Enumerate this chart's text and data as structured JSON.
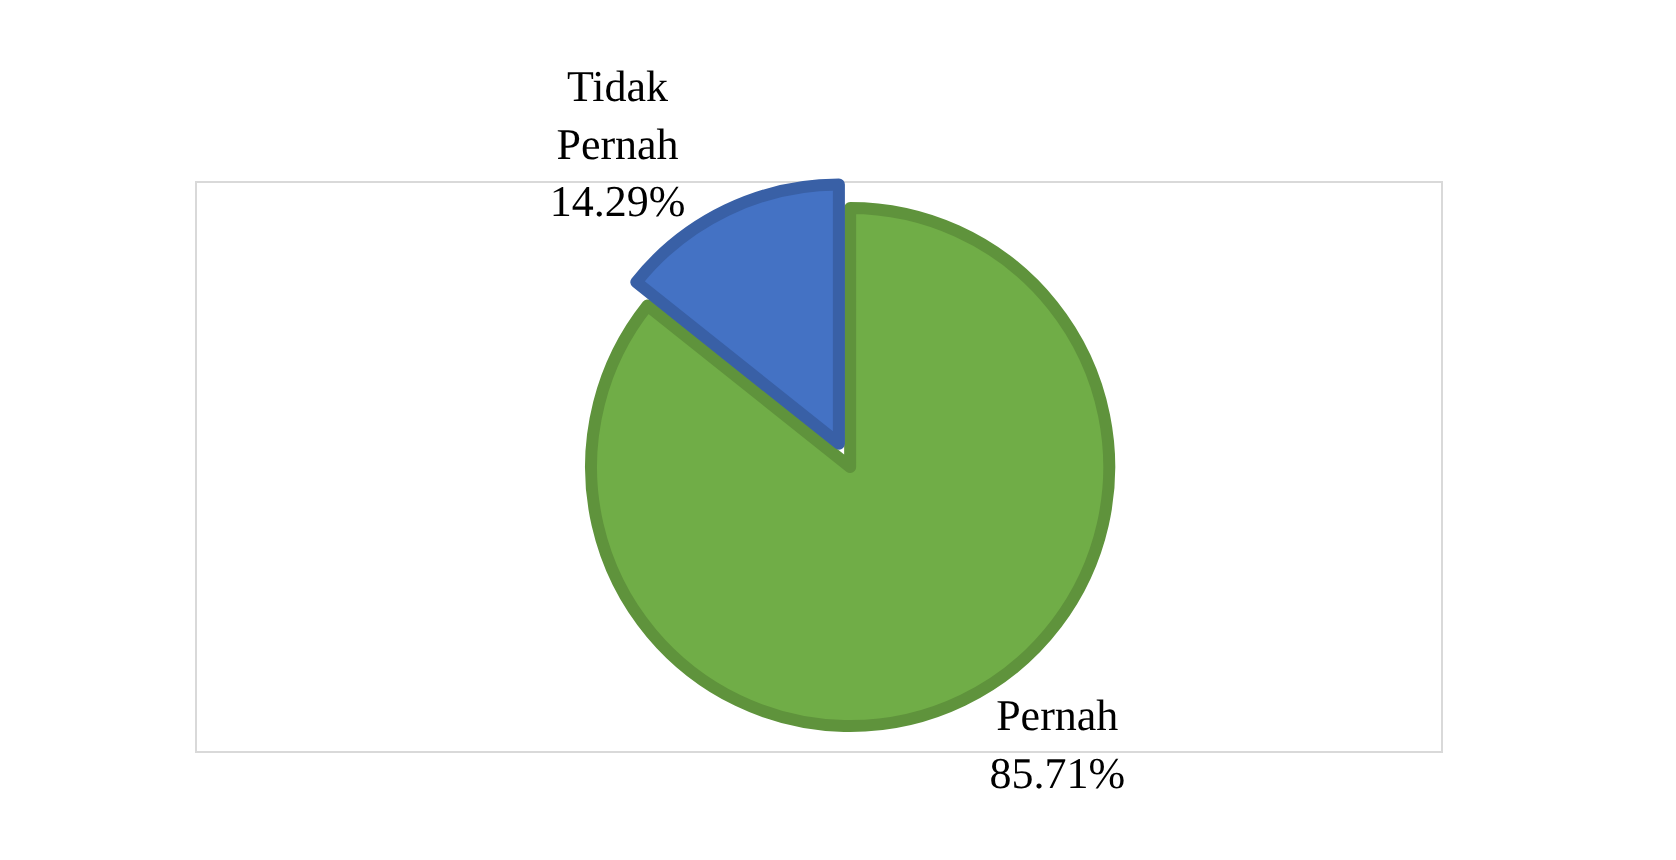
{
  "chart_data": {
    "type": "pie",
    "categories": [
      "Pernah",
      "Tidak Pernah"
    ],
    "values": [
      85.71,
      14.29
    ],
    "colors": [
      "#70ad47",
      "#4472c4"
    ],
    "value_labels": [
      "85.71%",
      "14.29%"
    ],
    "legend": false
  }
}
